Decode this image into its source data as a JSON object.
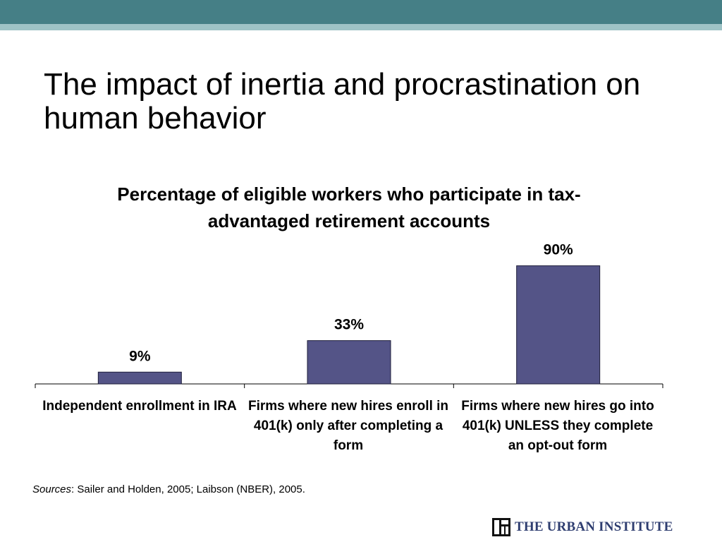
{
  "slide": {
    "title": "The impact of inertia and procrastination on human behavior"
  },
  "colors": {
    "header_bar": "#457f86",
    "header_stripe": "#9ec3c6",
    "bar_fill": "#545487",
    "bar_stroke": "#1e1e3a",
    "logo_text": "#2e3d70"
  },
  "chart_data": {
    "type": "bar",
    "title": "Percentage of eligible workers who participate in tax-advantaged retirement accounts",
    "categories": [
      "Independent enrollment in IRA",
      "Firms where new hires enroll in 401(k) only after completing a form",
      "Firms where new hires go into 401(k) UNLESS they complete an opt-out form"
    ],
    "values": [
      9,
      33,
      90
    ],
    "data_labels": [
      "9%",
      "33%",
      "90%"
    ],
    "ylim": [
      0,
      100
    ],
    "xlabel": "",
    "ylabel": "",
    "grid": false,
    "legend": "none"
  },
  "sources": {
    "label": "Sources",
    "text": ": Sailer and Holden, 2005; Laibson (NBER), 2005."
  },
  "logo": {
    "icon": "urban-institute-logo-icon",
    "text": "THE URBAN INSTITUTE"
  }
}
